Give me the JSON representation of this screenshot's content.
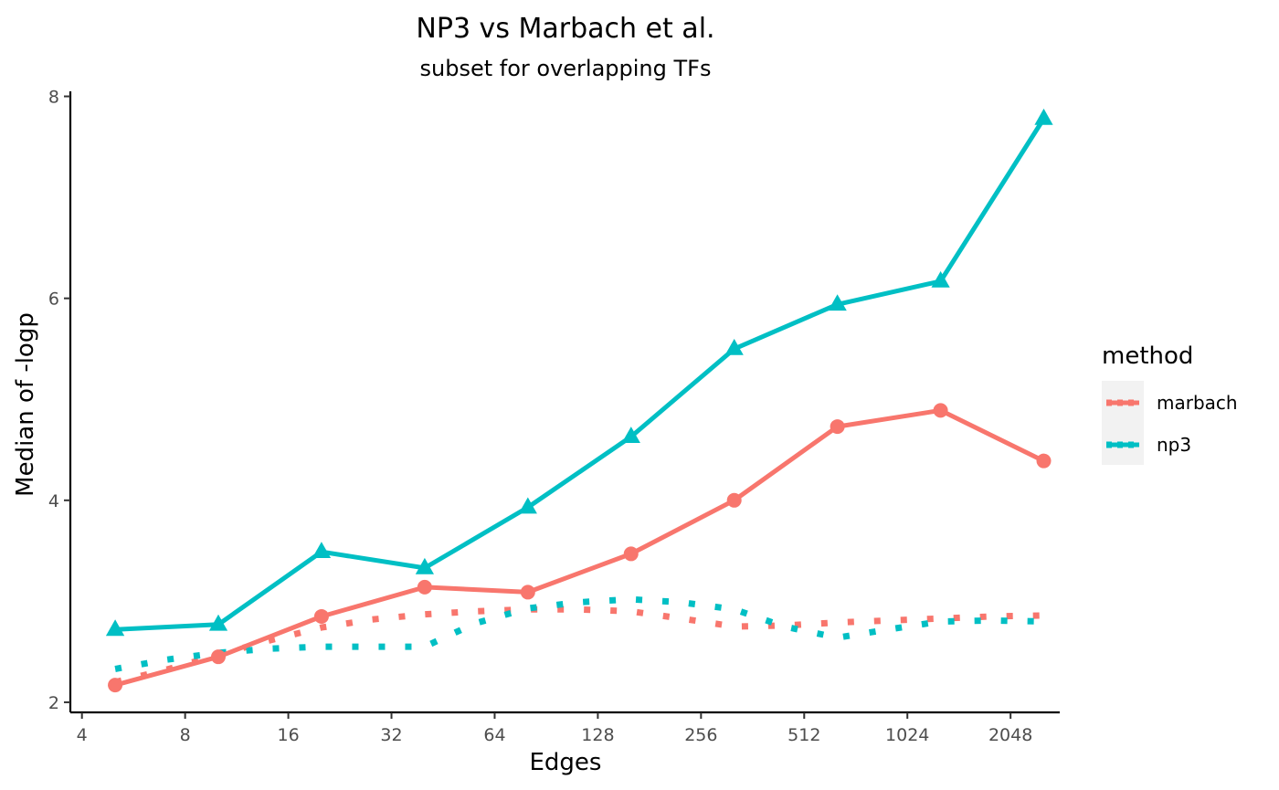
{
  "chart_data": {
    "type": "line",
    "title": "NP3 vs Marbach et al.",
    "subtitle": "subset for overlapping TFs",
    "xlabel": "Edges",
    "ylabel": "Median of -logp",
    "x_scale": "log2",
    "xlim": [
      3.7,
      2850
    ],
    "ylim": [
      1.9,
      8.05
    ],
    "x_ticks": [
      4,
      8,
      16,
      32,
      64,
      128,
      256,
      512,
      1024,
      2048
    ],
    "x_tick_labels": [
      "4",
      "8",
      "16",
      "32",
      "64",
      "128",
      "256",
      "512",
      "1024",
      "2048"
    ],
    "y_ticks": [
      2,
      4,
      6,
      8
    ],
    "y_tick_labels": [
      "2",
      "4",
      "6",
      "8"
    ],
    "grid": false,
    "legend": {
      "title": "method",
      "position": "right"
    },
    "series": [
      {
        "name": "marbach",
        "color": "#F8766D",
        "marker": "circle",
        "x": [
          5,
          10,
          20,
          40,
          80,
          160,
          320,
          640,
          1280,
          2560
        ],
        "values": [
          2.17,
          2.45,
          2.85,
          3.14,
          3.09,
          3.47,
          4.0,
          4.73,
          4.89,
          4.39
        ],
        "trend_x": [
          5,
          7,
          10,
          14,
          20,
          28,
          40,
          56,
          80,
          112,
          160,
          224,
          320,
          448,
          640,
          896,
          1280,
          1792,
          2560
        ],
        "trend_values": [
          2.2,
          2.32,
          2.47,
          2.61,
          2.74,
          2.82,
          2.87,
          2.9,
          2.92,
          2.92,
          2.9,
          2.83,
          2.75,
          2.76,
          2.79,
          2.81,
          2.83,
          2.85,
          2.86
        ]
      },
      {
        "name": "np3",
        "color": "#00BFC4",
        "marker": "triangle",
        "x": [
          5,
          10,
          20,
          40,
          80,
          160,
          320,
          640,
          1280,
          2560
        ],
        "values": [
          2.72,
          2.77,
          3.49,
          3.33,
          3.93,
          4.63,
          5.5,
          5.94,
          6.17,
          7.78
        ],
        "trend_x": [
          5,
          7,
          10,
          14,
          20,
          28,
          40,
          56,
          80,
          112,
          160,
          224,
          320,
          448,
          640,
          896,
          1280,
          1792,
          2560
        ],
        "trend_values": [
          2.33,
          2.42,
          2.49,
          2.53,
          2.55,
          2.55,
          2.55,
          2.78,
          2.93,
          2.99,
          3.02,
          2.99,
          2.92,
          2.75,
          2.64,
          2.72,
          2.8,
          2.81,
          2.8
        ]
      }
    ]
  }
}
